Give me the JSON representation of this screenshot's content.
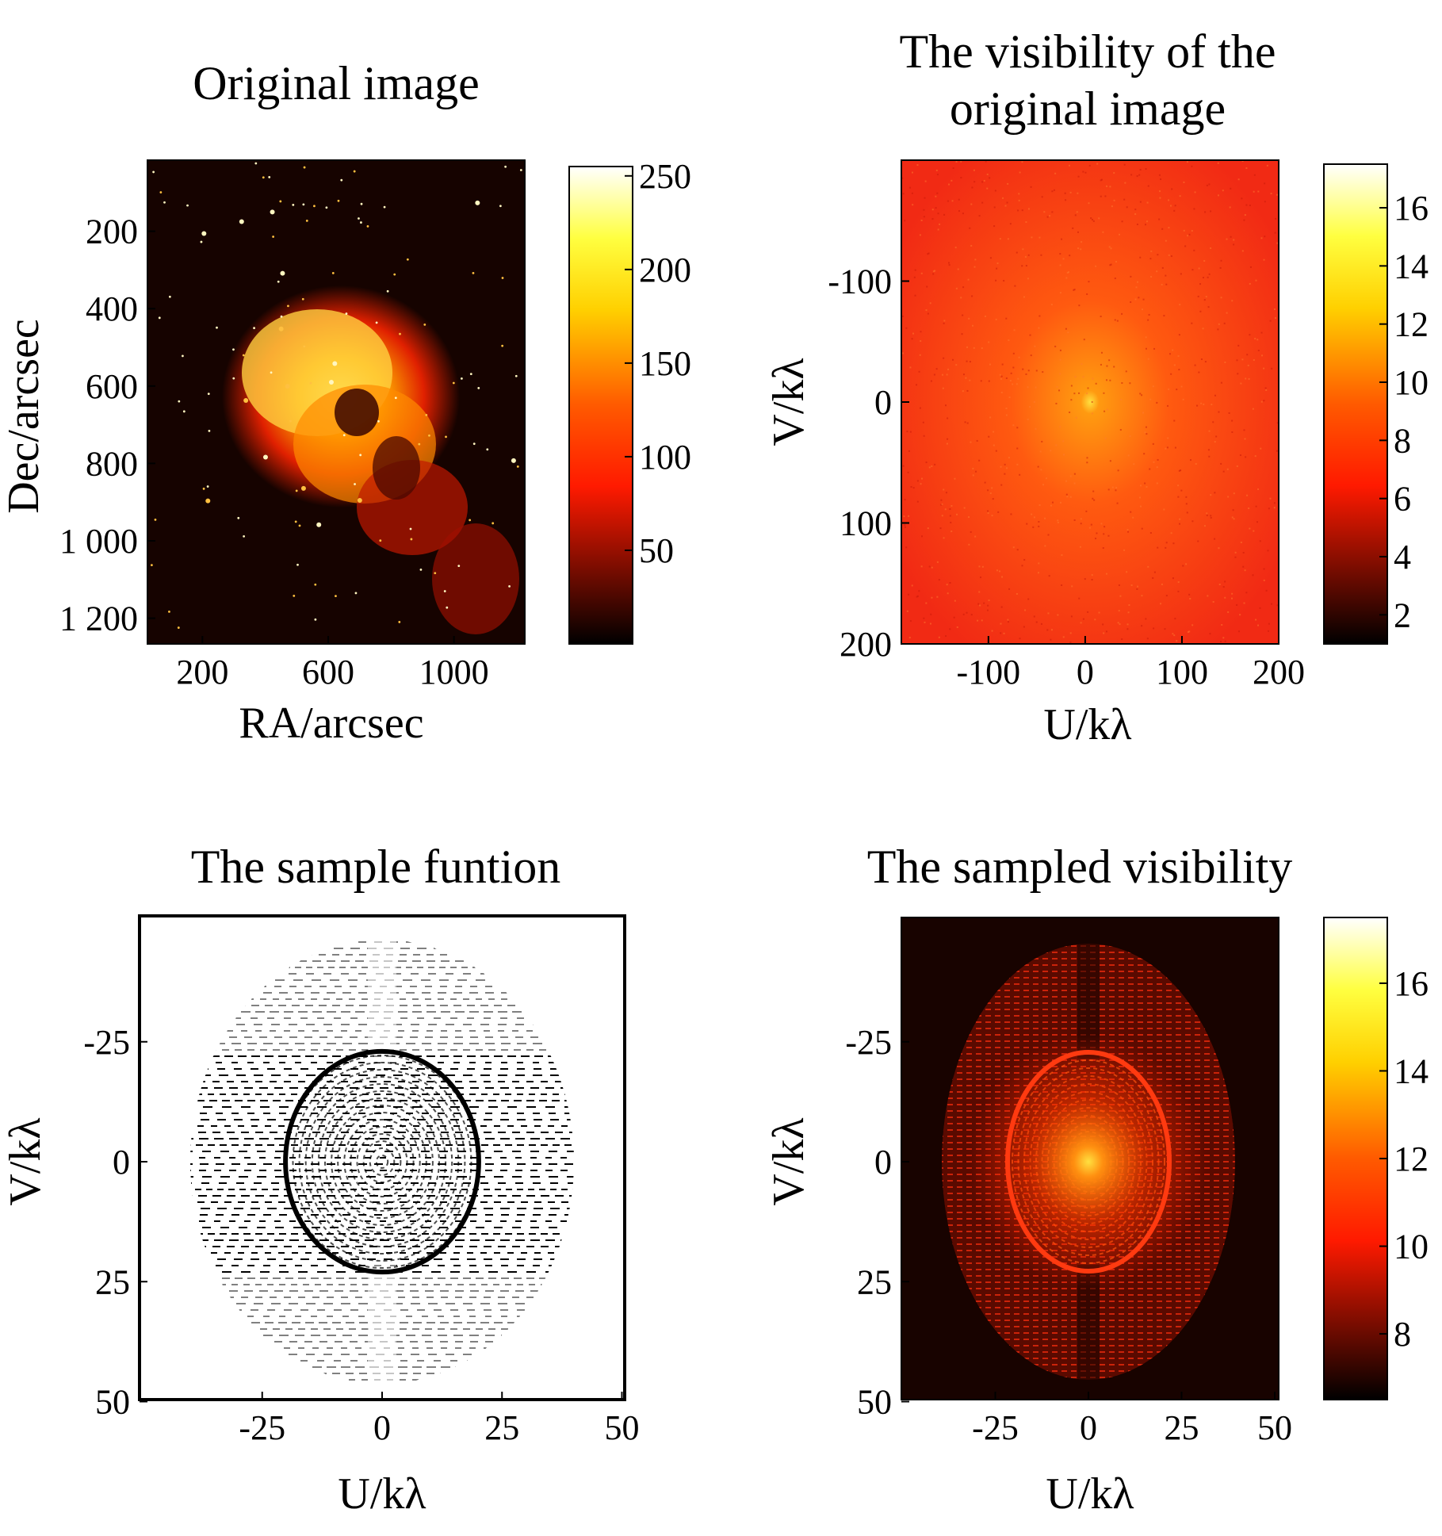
{
  "panels": [
    {
      "id": "original",
      "title_lines": [
        "Original image"
      ],
      "xlabel": "RA/arcsec",
      "ylabel": "Dec/arcsec",
      "xticks": [
        "200",
        "600",
        "1000"
      ],
      "yticks": [
        "200",
        "400",
        "600",
        "800",
        "1 000",
        "1 200"
      ],
      "colorbar_ticks": [
        "250",
        "200",
        "150",
        "100",
        "50"
      ]
    },
    {
      "id": "visibility",
      "title_lines": [
        "The visibility of the",
        "original image"
      ],
      "xlabel": "U/kλ",
      "ylabel": "V/kλ",
      "xticks": [
        "-100",
        "0",
        "100",
        "200"
      ],
      "yticks": [
        "-100",
        "0",
        "100",
        "200"
      ],
      "colorbar_ticks": [
        "16",
        "14",
        "12",
        "10",
        "8",
        "6",
        "4",
        "2"
      ]
    },
    {
      "id": "sample",
      "title_lines": [
        "The sample funtion"
      ],
      "xlabel": "U/kλ",
      "ylabel": "V/kλ",
      "xticks": [
        "-25",
        "0",
        "25",
        "50"
      ],
      "yticks": [
        "-25",
        "0",
        "25",
        "50"
      ],
      "colorbar_ticks": []
    },
    {
      "id": "sampled",
      "title_lines": [
        "The sampled visibility"
      ],
      "xlabel": "U/kλ",
      "ylabel": "V/kλ",
      "xticks": [
        "-25",
        "0",
        "25",
        "50"
      ],
      "yticks": [
        "-25",
        "0",
        "25",
        "50"
      ],
      "colorbar_ticks": [
        "16",
        "14",
        "12",
        "10",
        "8"
      ]
    }
  ],
  "chart_data": [
    {
      "type": "heatmap",
      "title": "Original image",
      "xlabel": "RA/arcsec",
      "ylabel": "Dec/arcsec",
      "xlim": [
        0,
        1200
      ],
      "ylim": [
        0,
        1250
      ],
      "y_reversed": true,
      "colormap": "hot",
      "colorbar_range": [
        0,
        255
      ]
    },
    {
      "type": "heatmap",
      "title": "The visibility of the original image",
      "xlabel": "U/kλ",
      "ylabel": "V/kλ",
      "xlim": [
        -190,
        200
      ],
      "ylim": [
        -200,
        200
      ],
      "y_reversed": true,
      "colormap": "hot",
      "colorbar_range": [
        1,
        17.5
      ]
    },
    {
      "type": "heatmap",
      "title": "The sample funtion",
      "xlabel": "U/kλ",
      "ylabel": "V/kλ",
      "xlim": [
        -50,
        50
      ],
      "ylim": [
        -50,
        50
      ],
      "y_reversed": true,
      "colormap": "binary",
      "inner_ring_radius": 23,
      "outer_ellipse_u": 40,
      "outer_ellipse_v": 45
    },
    {
      "type": "heatmap",
      "title": "The sampled visibility",
      "xlabel": "U/kλ",
      "ylabel": "V/kλ",
      "xlim": [
        -40,
        40
      ],
      "ylim": [
        -50,
        50
      ],
      "y_reversed": true,
      "colormap": "hot",
      "colorbar_range": [
        6.5,
        17.5
      ]
    }
  ]
}
